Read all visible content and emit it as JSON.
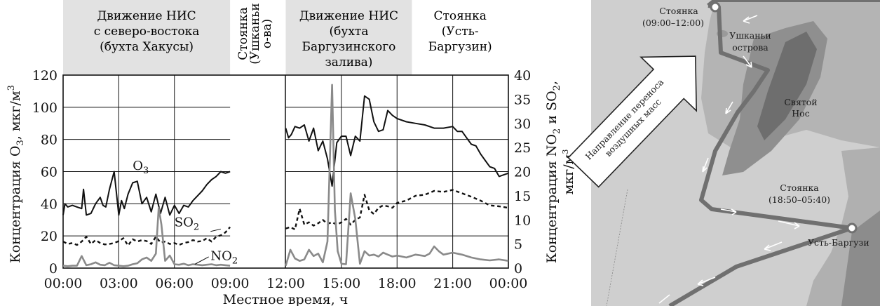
{
  "chart_data": {
    "type": "line",
    "xlabel": "Местное время, ч",
    "ylabel_left_pre": "Концентрация O",
    "ylabel_left_sub": "3",
    "ylabel_left_post": ", мкг/м",
    "ylabel_left_sup": "3",
    "ylabel_right_line1_pre": "Концентрация NO",
    "ylabel_right_line1_sub1": "2",
    "ylabel_right_line1_mid": " и SO",
    "ylabel_right_line1_sub2": "2",
    "ylabel_right_line1_post": ",",
    "ylabel_right_line2": "мкг/м",
    "ylabel_right_line2_sup": "3",
    "x_ticks": [
      "00:00",
      "03:00",
      "06:00",
      "09:00",
      "12:00",
      "15:00",
      "18:00",
      "21:00",
      "00:00"
    ],
    "y_left_ticks": [
      "0",
      "20",
      "40",
      "60",
      "80",
      "100",
      "120"
    ],
    "y_left_range": [
      0,
      120
    ],
    "y_right_ticks": [
      "0",
      "5",
      "10",
      "15",
      "20",
      "25",
      "30",
      "35",
      "40"
    ],
    "y_right_range": [
      0,
      40
    ],
    "x_range_hours": [
      0,
      24
    ],
    "grid": true,
    "periods": [
      {
        "lines": [
          "Движение НИС",
          "с северо-востока",
          "(бухта Хакусы)"
        ],
        "from_h": 0.0,
        "to_h": 9.0,
        "shaded": true,
        "orientation": "horizontal"
      },
      {
        "lines": [
          "Стоянка",
          "(Ушканьи",
          "о-ва)"
        ],
        "from_h": 9.0,
        "to_h": 12.0,
        "shaded": false,
        "orientation": "vertical"
      },
      {
        "lines": [
          "Движение НИС",
          "(бухта",
          "Баргузинского",
          "залива)"
        ],
        "from_h": 12.0,
        "to_h": 18.8,
        "shaded": true,
        "orientation": "horizontal"
      },
      {
        "lines": [
          "Стоянка",
          "(Усть-",
          "Баргузин)"
        ],
        "from_h": 18.8,
        "to_h": 24.0,
        "shaded": false,
        "orientation": "horizontal"
      }
    ],
    "series": [
      {
        "name": "O3",
        "label_main": "O",
        "label_sub": "3",
        "axis": "left",
        "style": "solid",
        "color": "#111111",
        "segments": [
          {
            "x": [
              0.0,
              0.1,
              0.25,
              0.5,
              0.75,
              1.0,
              1.1,
              1.25,
              1.5,
              1.75,
              2.0,
              2.15,
              2.3,
              2.5,
              2.75,
              3.0,
              3.15,
              3.3,
              3.5,
              3.75,
              4.0,
              4.25,
              4.5,
              4.75,
              5.0,
              5.25,
              5.5,
              5.75,
              6.0,
              6.25,
              6.5,
              6.75,
              7.0,
              7.25,
              7.5,
              7.75,
              8.0,
              8.25,
              8.5,
              8.75,
              9.0
            ],
            "y": [
              33,
              40,
              38,
              39,
              38,
              37,
              49,
              33,
              34,
              40,
              44,
              39,
              38,
              49,
              60,
              33,
              42,
              37,
              46,
              53,
              54,
              40,
              44,
              35,
              46,
              34,
              44,
              33,
              39,
              34,
              39,
              38,
              42,
              45,
              48,
              52,
              55,
              57,
              60,
              59,
              60
            ]
          },
          {
            "x": [
              12.0,
              12.15,
              12.3,
              12.5,
              12.75,
              13.0,
              13.25,
              13.5,
              13.75,
              14.0,
              14.25,
              14.5,
              14.75,
              15.0,
              15.25,
              15.5,
              15.75,
              16.0,
              16.25,
              16.5,
              16.75,
              17.0,
              17.25,
              17.5,
              17.75,
              18.0,
              18.5,
              19.0,
              19.5,
              20.0,
              20.5,
              21.0,
              21.25,
              21.5,
              21.75,
              22.0,
              22.25,
              22.5,
              22.75,
              23.0,
              23.25,
              23.5,
              23.75,
              24.0
            ],
            "y": [
              87,
              81,
              83,
              88,
              87,
              89,
              79,
              87,
              73,
              79,
              68,
              51,
              78,
              82,
              82,
              70,
              82,
              79,
              107,
              105,
              91,
              85,
              86,
              98,
              95,
              93,
              91,
              90,
              89,
              87,
              87,
              88,
              85,
              85,
              81,
              77,
              76,
              71,
              67,
              63,
              62,
              57,
              58,
              59
            ]
          }
        ]
      },
      {
        "name": "SO2",
        "label_main": "SO",
        "label_sub": "2",
        "axis": "right",
        "style": "dashed",
        "color": "#111111",
        "segments": [
          {
            "x": [
              0.0,
              0.25,
              0.5,
              0.75,
              1.0,
              1.25,
              1.5,
              1.75,
              2.0,
              2.25,
              2.5,
              2.75,
              3.0,
              3.25,
              3.5,
              3.75,
              4.0,
              4.25,
              4.5,
              4.75,
              5.0,
              5.25,
              5.5,
              5.75,
              6.0,
              6.25,
              6.5,
              6.75,
              7.0,
              7.25,
              7.5,
              7.75,
              8.0,
              8.25,
              8.5,
              8.75,
              9.0
            ],
            "y": [
              5.5,
              5.0,
              5.2,
              4.8,
              5.5,
              6.5,
              5.0,
              5.8,
              5.2,
              4.9,
              5.0,
              5.2,
              5.6,
              6.2,
              4.7,
              6.0,
              5.5,
              5.8,
              5.6,
              5.0,
              6.5,
              5.3,
              5.5,
              5.0,
              5.2,
              4.8,
              5.2,
              5.4,
              5.8,
              5.5,
              5.6,
              6.2,
              5.5,
              6.5,
              6.8,
              7.4,
              8.5
            ]
          },
          {
            "x": [
              12.0,
              12.25,
              12.5,
              12.75,
              13.0,
              13.25,
              13.5,
              13.75,
              14.0,
              14.25,
              14.5,
              14.75,
              15.0,
              15.25,
              15.5,
              15.75,
              16.0,
              16.25,
              16.5,
              16.75,
              17.0,
              17.25,
              17.5,
              17.75,
              18.0,
              18.5,
              19.0,
              19.5,
              20.0,
              20.5,
              21.0,
              21.5,
              22.0,
              22.5,
              23.0,
              23.5,
              24.0
            ],
            "y": [
              8.2,
              8.5,
              8.0,
              12.3,
              9.0,
              9.5,
              8.8,
              9.3,
              10.0,
              9.2,
              9.5,
              9.0,
              9.5,
              10.2,
              9.0,
              10.0,
              10.5,
              15.2,
              12.0,
              11.2,
              12.5,
              13.0,
              12.8,
              12.5,
              13.5,
              14.0,
              15.0,
              15.2,
              16.0,
              15.8,
              16.2,
              15.5,
              14.8,
              14.0,
              13.0,
              12.8,
              12.5
            ]
          }
        ]
      },
      {
        "name": "NO2",
        "label_main": "NO",
        "label_sub": "2",
        "axis": "right",
        "style": "solid",
        "color": "#8a8a8a",
        "segments": [
          {
            "x": [
              0.0,
              0.25,
              0.5,
              0.75,
              1.0,
              1.25,
              1.5,
              1.75,
              2.0,
              2.25,
              2.5,
              2.75,
              3.0,
              3.25,
              3.5,
              3.75,
              4.0,
              4.25,
              4.5,
              4.75,
              5.0,
              5.15,
              5.3,
              5.5,
              5.75,
              6.0,
              6.25,
              6.5,
              6.75,
              7.0,
              7.25,
              7.5,
              7.75,
              8.0,
              8.25,
              8.5,
              8.75,
              9.0
            ],
            "y": [
              0.5,
              0.4,
              0.5,
              0.5,
              2.5,
              0.6,
              0.8,
              1.2,
              0.7,
              0.6,
              1.1,
              0.6,
              0.5,
              0.4,
              0.5,
              0.8,
              1.0,
              1.8,
              2.2,
              1.5,
              3.0,
              12.5,
              9.0,
              1.5,
              2.6,
              0.8,
              0.7,
              0.9,
              0.6,
              0.8,
              0.7,
              0.6,
              0.7,
              0.8,
              0.6,
              0.7,
              0.6,
              0.5
            ]
          },
          {
            "x": [
              12.0,
              12.25,
              12.5,
              12.75,
              13.0,
              13.25,
              13.5,
              13.75,
              14.0,
              14.25,
              14.5,
              14.65,
              14.8,
              15.0,
              15.25,
              15.5,
              15.75,
              16.0,
              16.25,
              16.5,
              16.75,
              17.0,
              17.25,
              17.5,
              17.75,
              18.0,
              18.5,
              19.0,
              19.5,
              19.75,
              20.0,
              20.25,
              20.5,
              21.0,
              21.5,
              22.0,
              22.5,
              23.0,
              23.5,
              24.0
            ],
            "y": [
              0.5,
              3.8,
              2.0,
              1.5,
              1.8,
              3.8,
              2.5,
              3.0,
              1.2,
              5.5,
              38.0,
              12.0,
              3.5,
              0.9,
              0.8,
              15.5,
              10.2,
              0.9,
              3.5,
              2.6,
              2.8,
              2.4,
              3.2,
              2.8,
              2.4,
              2.6,
              2.2,
              2.8,
              2.5,
              3.0,
              4.5,
              3.5,
              2.8,
              3.2,
              2.8,
              2.2,
              1.8,
              1.6,
              1.8,
              1.5
            ]
          }
        ]
      }
    ]
  },
  "map": {
    "stops": [
      {
        "lines": [
          "Стоянка",
          "(09:00–12:00)"
        ]
      },
      {
        "lines": [
          "Стоянка",
          "(18:50–05:40)"
        ]
      }
    ],
    "places": [
      {
        "lines": [
          "Ушканьи",
          "острова"
        ]
      },
      {
        "lines": [
          "Святой",
          "Нос"
        ]
      },
      {
        "lines": [
          "Усть-Баргузи"
        ]
      }
    ],
    "wind_arrow_lines": [
      "Направление переноса",
      "воздушных масс"
    ],
    "colors": {
      "water": "#cfcfcf",
      "land": "#a9a9a9",
      "track": "#707070",
      "arrow_fill": "#ffffff"
    }
  }
}
